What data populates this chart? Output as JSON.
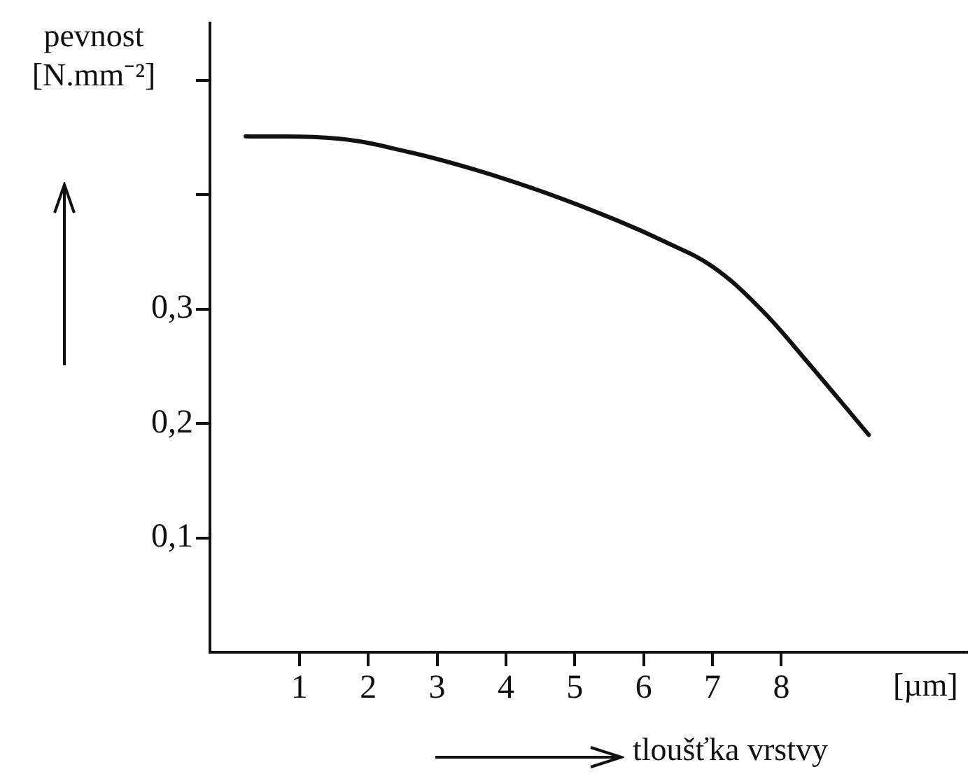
{
  "chart_data": {
    "type": "line",
    "xlabel": "tloušťka vrstvy",
    "ylabel": "pevnost [N.mm⁻²]",
    "annotations": [
      "[µm]"
    ],
    "x": [
      0.22,
      1.55,
      2.6,
      3.59,
      4.6,
      5.63,
      6.3,
      7.0,
      7.7,
      8.29,
      9.27
    ],
    "series": [
      {
        "color": "#111111",
        "values": [
          0.451,
          0.449,
          0.437,
          0.421,
          0.401,
          0.377,
          0.359,
          0.337,
          0.3,
          0.26,
          0.19
        ]
      }
    ],
    "xlim": [
      -0.3,
      10.7
    ],
    "ylim": [
      0,
      0.55
    ],
    "xticks": [
      1,
      2,
      3,
      4,
      5,
      6,
      7,
      8
    ],
    "yticks": [
      {
        "value": 0.1,
        "label": "0,1"
      },
      {
        "value": 0.2,
        "label": "0,2"
      },
      {
        "value": 0.3,
        "label": "0,3"
      },
      {
        "value": 0.4,
        "label": null
      },
      {
        "value": 0.5,
        "label": null
      }
    ],
    "grid": false,
    "legend": false,
    "marker": "none",
    "line_style": "solid"
  }
}
